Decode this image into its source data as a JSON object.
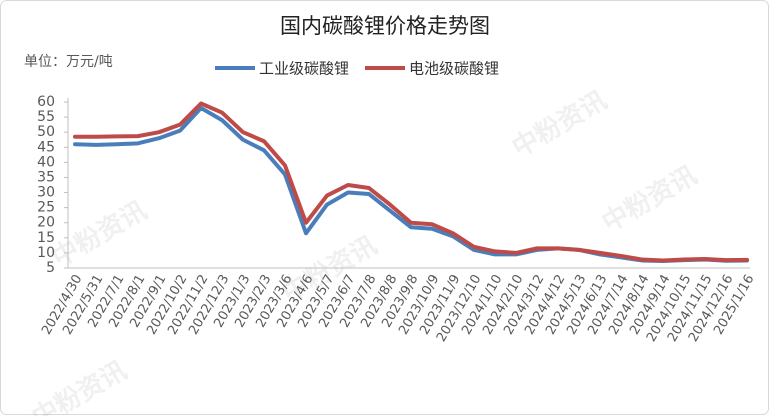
{
  "chart_data": {
    "type": "line",
    "title": "国内碳酸锂价格走势图",
    "y_label": "单位：万元/吨",
    "watermark": "中粉资讯",
    "categories": [
      "2022/4/30",
      "2022/5/31",
      "2022/7/1",
      "2022/8/1",
      "2022/9/1",
      "2022/10/2",
      "2022/11/2",
      "2022/12/3",
      "2023/1/3",
      "2023/2/3",
      "2023/3/6",
      "2023/4/6",
      "2023/5/7",
      "2023/6/7",
      "2023/7/8",
      "2023/8/8",
      "2023/9/8",
      "2023/10/9",
      "2023/11/9",
      "2023/12/10",
      "2024/1/10",
      "2024/2/10",
      "2024/3/12",
      "2024/4/12",
      "2024/5/13",
      "2024/6/13",
      "2024/7/14",
      "2024/8/14",
      "2024/9/14",
      "2024/10/15",
      "2024/11/15",
      "2024/12/16",
      "2025/1/16"
    ],
    "series": [
      {
        "name": "工业级碳酸锂",
        "color": "#4a7ebb",
        "values": [
          46,
          45.8,
          46,
          46.3,
          48,
          50.5,
          58,
          54,
          47.5,
          44,
          36,
          16.5,
          26,
          30,
          29.5,
          24,
          18.5,
          18,
          15.5,
          11,
          9.5,
          9.5,
          11,
          11.5,
          11,
          9.5,
          8.5,
          7.5,
          7.3,
          7.6,
          7.8,
          7.4,
          7.5
        ]
      },
      {
        "name": "电池级碳酸锂",
        "color": "#be4b48",
        "values": [
          48.5,
          48.5,
          48.6,
          48.7,
          50,
          52.5,
          59.5,
          56.5,
          50,
          47,
          39,
          20,
          29,
          32.5,
          31.5,
          26,
          20,
          19.5,
          16.5,
          12,
          10.5,
          10,
          11.5,
          11.5,
          11,
          10,
          9,
          7.8,
          7.5,
          7.8,
          8,
          7.6,
          7.7
        ]
      }
    ],
    "ylim": [
      5,
      60
    ],
    "yticks": [
      5,
      10,
      15,
      20,
      25,
      30,
      35,
      40,
      45,
      50,
      55,
      60
    ],
    "legend": "top",
    "grid": false
  }
}
